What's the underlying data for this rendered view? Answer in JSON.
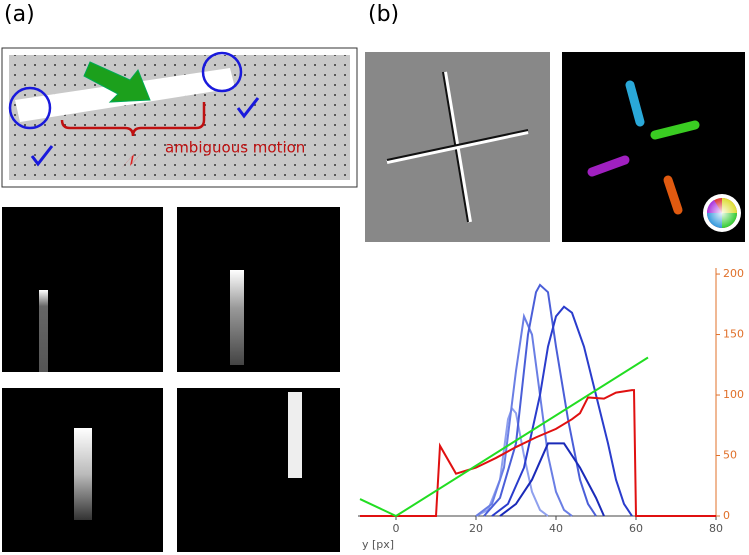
{
  "panels": {
    "a": {
      "label": "(a)",
      "annotation": "ambiguous motion"
    },
    "b": {
      "label": "(b)"
    }
  },
  "chart_data": {
    "type": "line",
    "xlabel": "y [px]",
    "xlim": [
      -9.5,
      80
    ],
    "ylim": [
      0,
      205
    ],
    "xticks": [
      0,
      20,
      40,
      60,
      80
    ],
    "yticks": [
      0,
      50,
      100,
      150,
      200
    ],
    "series": [
      {
        "color": "#8fa0ee",
        "x": [
          20,
          23,
          26,
          28,
          29,
          30,
          32,
          34,
          36,
          38
        ],
        "values": [
          0,
          5,
          30,
          80,
          89,
          85,
          50,
          20,
          5,
          0
        ]
      },
      {
        "color": "#6a7ee4",
        "x": [
          20,
          24,
          27,
          30,
          32,
          34,
          36,
          38,
          40,
          42,
          44
        ],
        "values": [
          0,
          10,
          40,
          120,
          165,
          150,
          100,
          50,
          20,
          5,
          0
        ]
      },
      {
        "color": "#4a5ed8",
        "x": [
          22,
          26,
          30,
          33,
          35,
          36,
          38,
          40,
          43,
          46,
          48,
          50
        ],
        "values": [
          0,
          15,
          60,
          150,
          185,
          191,
          185,
          140,
          80,
          30,
          10,
          0
        ]
      },
      {
        "color": "#2a3ccc",
        "x": [
          24,
          28,
          32,
          36,
          38,
          40,
          42,
          44,
          47,
          50,
          53,
          55,
          57,
          59
        ],
        "values": [
          0,
          10,
          40,
          100,
          140,
          165,
          173,
          168,
          140,
          100,
          60,
          30,
          10,
          0
        ]
      },
      {
        "color": "#1a2ab8",
        "x": [
          26,
          30,
          34,
          38,
          42,
          46,
          50,
          52
        ],
        "values": [
          0,
          10,
          30,
          60,
          60,
          40,
          15,
          0
        ]
      },
      {
        "color": "#e01010",
        "x": [
          -9,
          10,
          11,
          15,
          20,
          25,
          30,
          35,
          40,
          44,
          46,
          48,
          52,
          55,
          59,
          59.5,
          60,
          80
        ],
        "values": [
          0,
          0,
          58,
          35,
          40,
          48,
          57,
          65,
          72,
          80,
          85,
          98,
          97,
          102,
          104,
          104,
          0,
          0
        ]
      },
      {
        "color": "#22dd22",
        "x": [
          -9,
          0,
          63
        ],
        "values": [
          14,
          0,
          131
        ]
      }
    ]
  }
}
